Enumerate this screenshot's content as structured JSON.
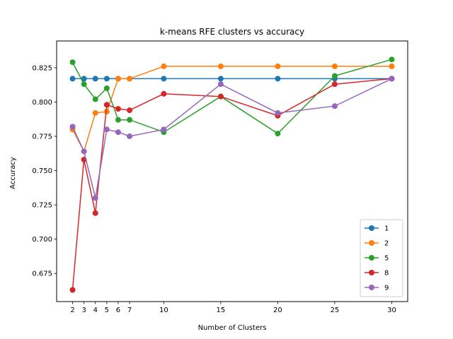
{
  "chart_data": {
    "type": "line",
    "title": "k-means RFE clusters vs accuracy",
    "xlabel": "Number of Clusters",
    "ylabel": "Accuracy",
    "x": [
      2,
      3,
      4,
      5,
      6,
      7,
      10,
      15,
      20,
      25,
      30
    ],
    "xticks": [
      "2",
      "3",
      "4",
      "5",
      "6",
      "7",
      "10",
      "15",
      "20",
      "25",
      "30"
    ],
    "xlim": [
      0.6,
      31.4
    ],
    "ylim": [
      0.6545,
      0.8445
    ],
    "yticks": [
      "0.675",
      "0.700",
      "0.725",
      "0.750",
      "0.775",
      "0.800",
      "0.825"
    ],
    "grid": false,
    "legend_position": "lower-right",
    "series": [
      {
        "name": "1",
        "color": "#1f77b4",
        "values": [
          0.817,
          0.817,
          0.817,
          0.817,
          0.817,
          0.817,
          0.817,
          0.817,
          0.817,
          0.817,
          0.817
        ]
      },
      {
        "name": "2",
        "color": "#ff7f0e",
        "values": [
          0.78,
          0.764,
          0.792,
          0.793,
          0.817,
          0.817,
          0.826,
          0.826,
          0.826,
          0.826,
          0.826
        ]
      },
      {
        "name": "5",
        "color": "#2ca02c",
        "values": [
          0.829,
          0.813,
          0.802,
          0.81,
          0.787,
          0.787,
          0.778,
          0.804,
          0.777,
          0.819,
          0.831
        ]
      },
      {
        "name": "8",
        "color": "#d62728",
        "values": [
          0.663,
          0.758,
          0.719,
          0.798,
          0.795,
          0.794,
          0.806,
          0.804,
          0.79,
          0.813,
          0.817
        ]
      },
      {
        "name": "9",
        "color": "#9467bd",
        "values": [
          0.782,
          0.764,
          0.73,
          0.78,
          0.778,
          0.775,
          0.78,
          0.813,
          0.792,
          0.797,
          0.817
        ]
      }
    ]
  }
}
